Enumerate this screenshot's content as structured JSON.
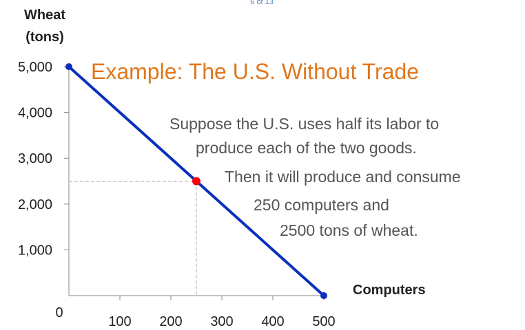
{
  "page_indicator": "6 of 13",
  "chart_data": {
    "type": "line",
    "title": "Example: The U.S. Without Trade",
    "xlabel": "Computers",
    "ylabel_line1": "Wheat",
    "ylabel_line2": "(tons)",
    "xlim": [
      0,
      500
    ],
    "ylim": [
      0,
      5000
    ],
    "x_tick_labels": [
      "0",
      "100",
      "200",
      "300",
      "400",
      "500"
    ],
    "y_tick_labels": [
      "1,000",
      "2,000",
      "3,000",
      "4,000",
      "5,000"
    ],
    "x_ticks": [
      100,
      200,
      300,
      400,
      500
    ],
    "y_ticks": [
      1000,
      2000,
      3000,
      4000,
      5000
    ],
    "line": {
      "x": [
        0,
        500
      ],
      "y": [
        5000,
        0
      ]
    },
    "endpoints": [
      {
        "x": 0,
        "y": 5000
      },
      {
        "x": 500,
        "y": 0
      }
    ],
    "highlight_point": {
      "x": 250,
      "y": 2500
    },
    "colors": {
      "line": "#0a2fbf",
      "highlight": "#ff0000",
      "title": "#e2761b",
      "guide": "#aaaaaa"
    },
    "grid": false
  },
  "annotation": {
    "line1": "Suppose the U.S. uses half its labor to",
    "line2": "produce each of the two goods.",
    "line3": "Then it will produce and consume",
    "line4": "250 computers  and",
    "line5": "2500 tons of wheat."
  }
}
